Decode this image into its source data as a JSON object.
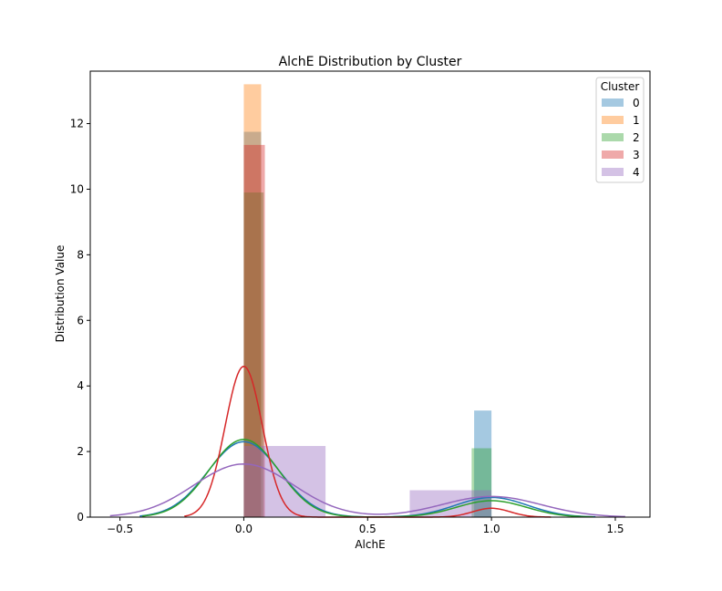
{
  "chart_data": {
    "type": "bar",
    "title": "AlchE Distribution by Cluster",
    "xlabel": "AlchE",
    "ylabel": "Distribution Value",
    "xlim": [
      -0.62,
      1.64
    ],
    "ylim": [
      0,
      13.6
    ],
    "xticks": [
      -0.5,
      0.0,
      0.5,
      1.0,
      1.5
    ],
    "xtick_labels": [
      "−0.5",
      "0.0",
      "0.5",
      "1.0",
      "1.5"
    ],
    "yticks": [
      0,
      2,
      4,
      6,
      8,
      10,
      12
    ],
    "ytick_labels": [
      "0",
      "2",
      "4",
      "6",
      "8",
      "10",
      "12"
    ],
    "grid": false,
    "legend": {
      "title": "Cluster",
      "placement": "top-right",
      "entries": [
        "0",
        "1",
        "2",
        "3",
        "4"
      ]
    },
    "series": [
      {
        "name": "0",
        "color": "#1f77b4",
        "hist": [
          {
            "x0": 0.0,
            "x1": 0.07,
            "height": 11.75
          },
          {
            "x0": 0.93,
            "x1": 1.0,
            "height": 3.25
          }
        ],
        "kde": {
          "peaks": [
            {
              "mu": 0.0,
              "sigma": 0.145,
              "amp": 2.3
            },
            {
              "mu": 1.0,
              "sigma": 0.145,
              "amp": 0.6
            }
          ],
          "range": [
            -0.42,
            1.42
          ]
        }
      },
      {
        "name": "1",
        "color": "#ff7f0e",
        "hist": [
          {
            "x0": 0.0,
            "x1": 0.07,
            "height": 13.2
          }
        ],
        "kde": null
      },
      {
        "name": "2",
        "color": "#2ca02c",
        "hist": [
          {
            "x0": 0.0,
            "x1": 0.08,
            "height": 9.9
          },
          {
            "x0": 0.92,
            "x1": 1.0,
            "height": 2.1
          }
        ],
        "kde": {
          "peaks": [
            {
              "mu": 0.0,
              "sigma": 0.14,
              "amp": 2.37
            },
            {
              "mu": 1.0,
              "sigma": 0.14,
              "amp": 0.5
            }
          ],
          "range": [
            -0.41,
            1.41
          ]
        }
      },
      {
        "name": "3",
        "color": "#d62728",
        "hist": [
          {
            "x0": 0.0,
            "x1": 0.085,
            "height": 11.35
          }
        ],
        "kde": {
          "peaks": [
            {
              "mu": 0.0,
              "sigma": 0.075,
              "amp": 4.6
            },
            {
              "mu": 1.0,
              "sigma": 0.075,
              "amp": 0.27
            }
          ],
          "range": [
            -0.24,
            1.24
          ]
        }
      },
      {
        "name": "4",
        "color": "#9467bd",
        "hist": [
          {
            "x0": 0.0,
            "x1": 0.33,
            "height": 2.17
          },
          {
            "x0": 0.67,
            "x1": 1.0,
            "height": 0.82
          }
        ],
        "kde": {
          "peaks": [
            {
              "mu": 0.0,
              "sigma": 0.2,
              "amp": 1.62
            },
            {
              "mu": 1.0,
              "sigma": 0.2,
              "amp": 0.63
            }
          ],
          "range": [
            -0.54,
            1.54
          ]
        }
      }
    ]
  }
}
